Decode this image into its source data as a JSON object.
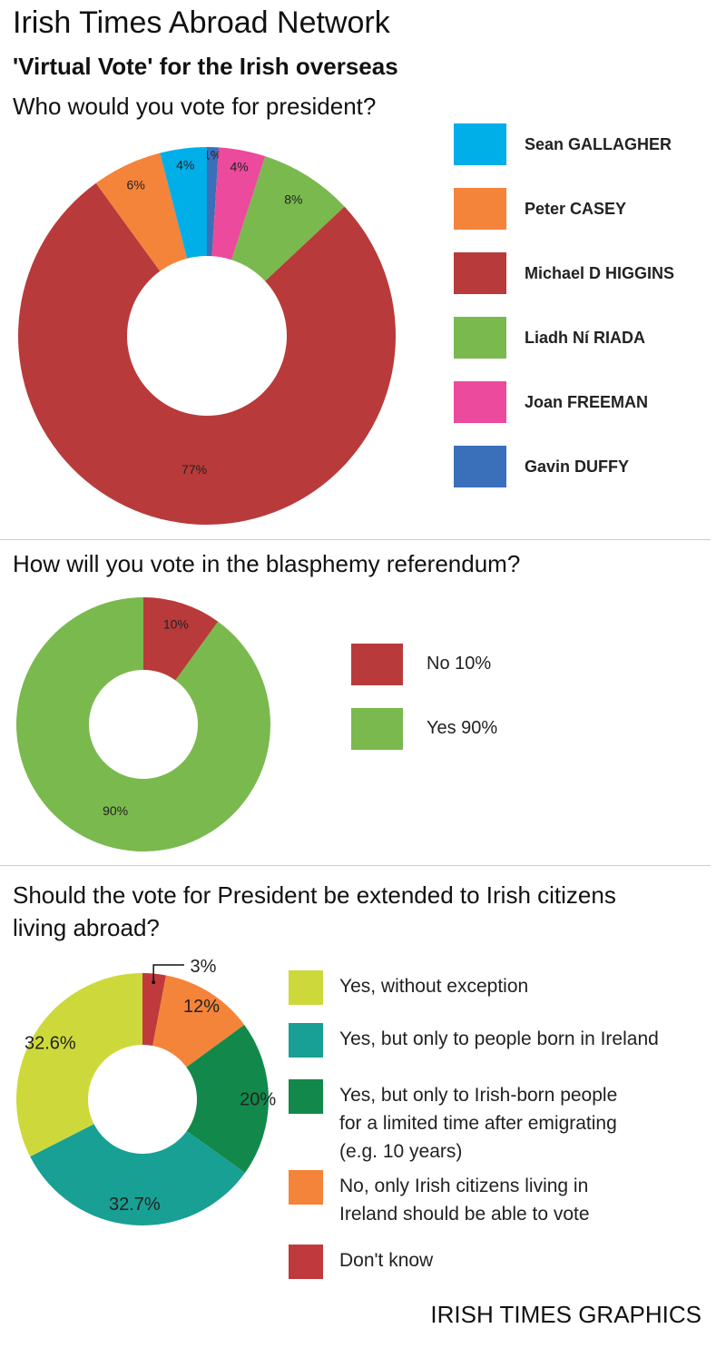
{
  "header": {
    "title": "Irish Times Abroad Network",
    "subtitle": "'Virtual Vote' for the Irish overseas"
  },
  "footer": "IRISH TIMES GRAPHICS",
  "chart_data": [
    {
      "type": "pie",
      "title": "Who would you vote for president?",
      "slices": [
        {
          "label": "Gavin DUFFY",
          "value": 1,
          "display": "1%",
          "color": "#3a6fb9"
        },
        {
          "label": "Joan FREEMAN",
          "value": 4,
          "display": "4%",
          "color": "#ec4a9c"
        },
        {
          "label": "Liadh Ní RIADA",
          "value": 8,
          "display": "8%",
          "color": "#7ab94e"
        },
        {
          "label": "Michael D HIGGINS",
          "value": 77,
          "display": "77%",
          "color": "#b93a3a"
        },
        {
          "label": "Peter CASEY",
          "value": 6,
          "display": "6%",
          "color": "#f4843a"
        },
        {
          "label": "Sean GALLAGHER",
          "value": 4,
          "display": "4%",
          "color": "#00aee8"
        }
      ],
      "legend": [
        "Sean GALLAGHER",
        "Peter CASEY",
        "Michael D HIGGINS",
        "Liadh Ní RIADA",
        "Joan FREEMAN",
        "Gavin DUFFY"
      ],
      "legend_placement": "right"
    },
    {
      "type": "pie",
      "title": "How will you vote in the  blasphemy referendum?",
      "slices": [
        {
          "label": "No",
          "value": 10,
          "display": "10%",
          "color": "#b93a3a"
        },
        {
          "label": "Yes",
          "value": 90,
          "display": "90%",
          "color": "#7ab94e"
        }
      ],
      "legend": [
        "No 10%",
        "Yes 90%"
      ],
      "legend_placement": "right"
    },
    {
      "type": "pie",
      "title": "Should the vote for President be extended to Irish citizens living abroad?",
      "slices": [
        {
          "label": "Don't know",
          "value": 3,
          "display": "3%",
          "color": "#c0393c"
        },
        {
          "label": "No, only Irish citizens living in Ireland should be able to vote",
          "value": 12,
          "display": "12%",
          "color": "#f4843a"
        },
        {
          "label": "Yes, but only to Irish-born people for a limited time after emigrating (e.g. 10 years)",
          "value": 20,
          "display": "20%",
          "color": "#12894a"
        },
        {
          "label": "Yes, but only to people born in Ireland",
          "value": 32.7,
          "display": "32.7%",
          "color": "#18a094"
        },
        {
          "label": "Yes, without exception",
          "value": 32.6,
          "display": "32.6%",
          "color": "#cdd93a"
        }
      ],
      "legend": [
        "Yes, without exception",
        "Yes, but only to people born in Ireland",
        "Yes, but only to Irish-born people\nfor a limited time after emigrating\n(e.g. 10 years)",
        "No, only Irish citizens living in\nIreland should be able to vote",
        "Don't know"
      ],
      "legend_placement": "right"
    }
  ]
}
